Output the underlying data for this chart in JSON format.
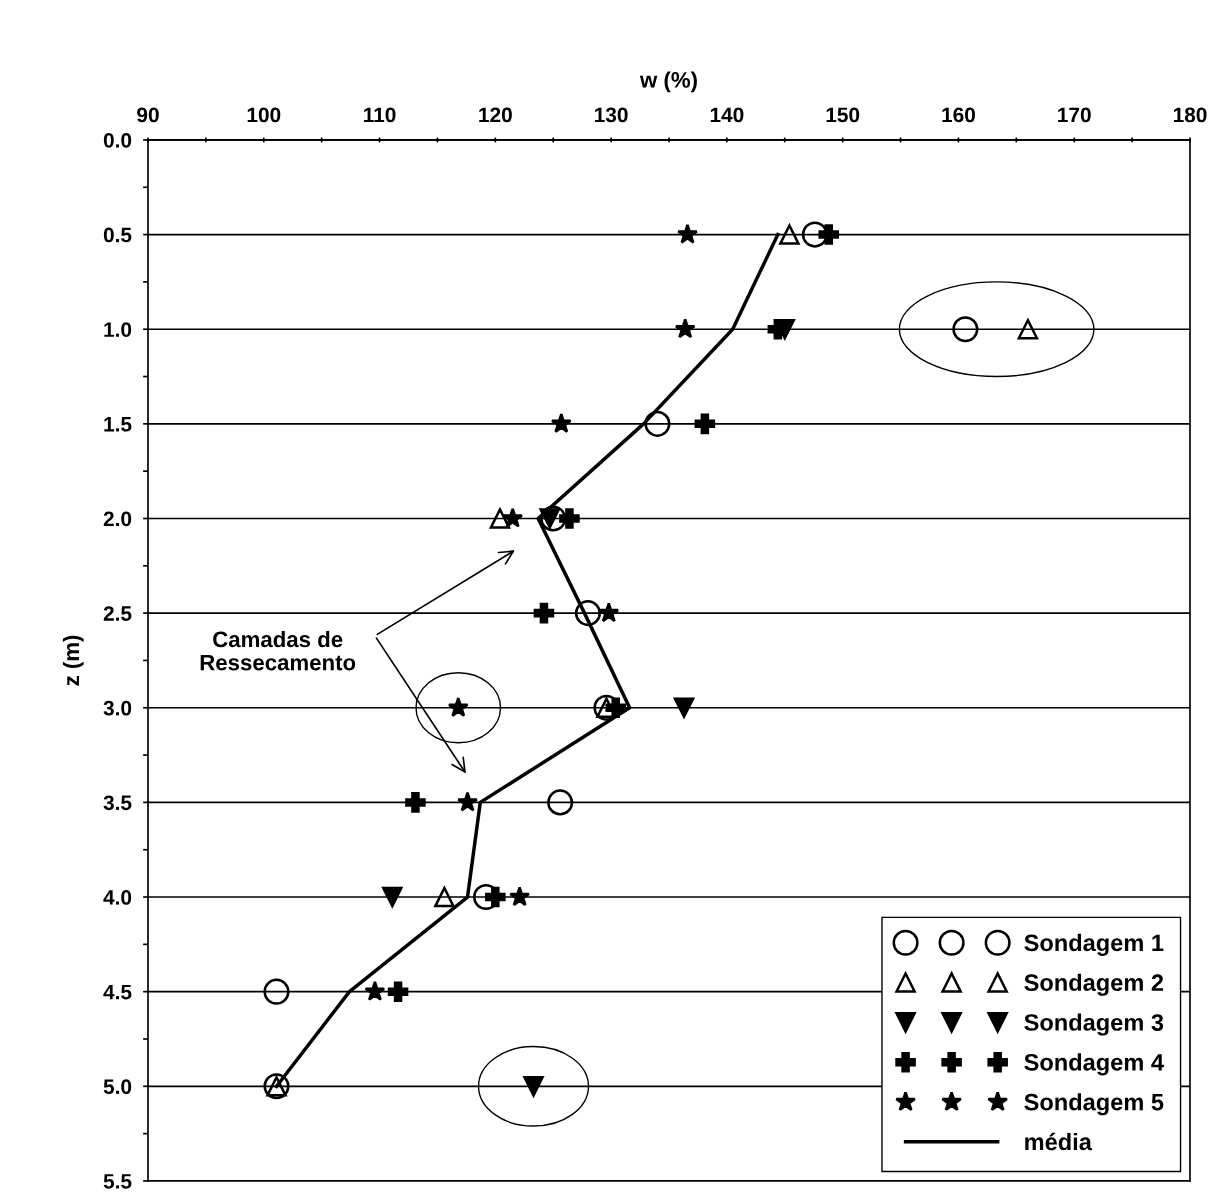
{
  "chart_data": {
    "type": "scatter",
    "xlabel": "w (%)",
    "ylabel": "z (m)",
    "xlim": [
      90,
      180
    ],
    "ylim": [
      5.5,
      0.0
    ],
    "xticks": [
      90,
      {
        "value": 95,
        "label": null
      },
      100,
      {
        "value": 105,
        "label": null
      },
      110,
      {
        "value": 115,
        "label": null
      },
      120,
      {
        "value": 125,
        "label": null
      },
      130,
      {
        "value": 135,
        "label": null
      },
      140,
      {
        "value": 145,
        "label": null
      },
      150,
      {
        "value": 155,
        "label": null
      },
      160,
      {
        "value": 165,
        "label": null
      },
      170,
      {
        "value": 175,
        "label": null
      },
      180
    ],
    "yticks": [
      {
        "value": 0,
        "label": "0.0"
      },
      {
        "value": 0.25,
        "label": null
      },
      {
        "value": 0.5,
        "label": "0.5"
      },
      {
        "value": 0.75,
        "label": null
      },
      {
        "value": 1,
        "label": "1.0"
      },
      {
        "value": 1.25,
        "label": null
      },
      {
        "value": 1.5,
        "label": "1.5"
      },
      {
        "value": 1.75,
        "label": null
      },
      {
        "value": 2,
        "label": "2.0"
      },
      {
        "value": 2.25,
        "label": null
      },
      {
        "value": 2.5,
        "label": "2.5"
      },
      {
        "value": 2.75,
        "label": null
      },
      {
        "value": 3,
        "label": "3.0"
      },
      {
        "value": 3.25,
        "label": null
      },
      {
        "value": 3.5,
        "label": "3.5"
      },
      {
        "value": 3.75,
        "label": null
      },
      {
        "value": 4,
        "label": "4.0"
      },
      {
        "value": 4.25,
        "label": null
      },
      {
        "value": 4.5,
        "label": "4.5"
      },
      {
        "value": 4.75,
        "label": null
      },
      {
        "value": 5,
        "label": "5.0"
      },
      {
        "value": 5.25,
        "label": null
      },
      {
        "value": 5.5,
        "label": "5.5"
      }
    ],
    "grid": "y",
    "legend": "bottom right",
    "annotations": [
      "Camadas de Ressecamento"
    ],
    "series": [
      {
        "name": "Sondagem 1",
        "color": "#000000",
        "marker": "circle",
        "x": [
          147.6,
          160.6,
          134.0,
          125.0,
          128.0,
          129.6,
          125.6,
          119.2,
          101.1,
          101.1
        ],
        "values": [
          0.5,
          1.0,
          1.5,
          2.0,
          2.5,
          3.0,
          3.5,
          4.0,
          4.5,
          5.0
        ]
      },
      {
        "name": "Sondagem 2",
        "color": "#000000",
        "marker": "triangle",
        "x": [
          145.4,
          166.0,
          120.4,
          129.6,
          115.6,
          101.1
        ],
        "values": [
          0.5,
          1.0,
          2.0,
          3.0,
          4.0,
          5.0
        ]
      },
      {
        "name": "Sondagem 3",
        "color": "#000000",
        "marker": "triangle_down",
        "x": [
          145.0,
          124.7,
          136.3,
          111.1,
          123.3
        ],
        "values": [
          1.0,
          2.0,
          3.0,
          4.0,
          5.0
        ]
      },
      {
        "name": "Sondagem 4",
        "color": "#000000",
        "marker": "cross",
        "x": [
          148.8,
          144.4,
          138.1,
          126.4,
          124.2,
          130.4,
          113.1,
          120.0,
          111.6
        ],
        "values": [
          0.5,
          1.0,
          1.5,
          2.0,
          2.5,
          3.0,
          3.5,
          4.0,
          4.5
        ]
      },
      {
        "name": "Sondagem 5",
        "color": "#000000",
        "marker": "star",
        "x": [
          136.6,
          136.4,
          125.7,
          121.5,
          129.8,
          116.8,
          117.6,
          122.1,
          109.6
        ],
        "values": [
          0.5,
          1.0,
          1.5,
          2.0,
          2.5,
          3.0,
          3.5,
          4.0,
          4.5
        ]
      },
      {
        "name": "média",
        "type": "line",
        "color": "#000000",
        "marker": "none",
        "line_style": "solid",
        "x": [
          144.4,
          140.5,
          132.8,
          123.7,
          127.7,
          131.6,
          118.7,
          117.6,
          107.4,
          101.1
        ],
        "values": [
          0.5,
          1.0,
          1.5,
          2.0,
          2.5,
          3.0,
          3.5,
          4.0,
          4.5,
          5.0
        ]
      }
    ]
  }
}
